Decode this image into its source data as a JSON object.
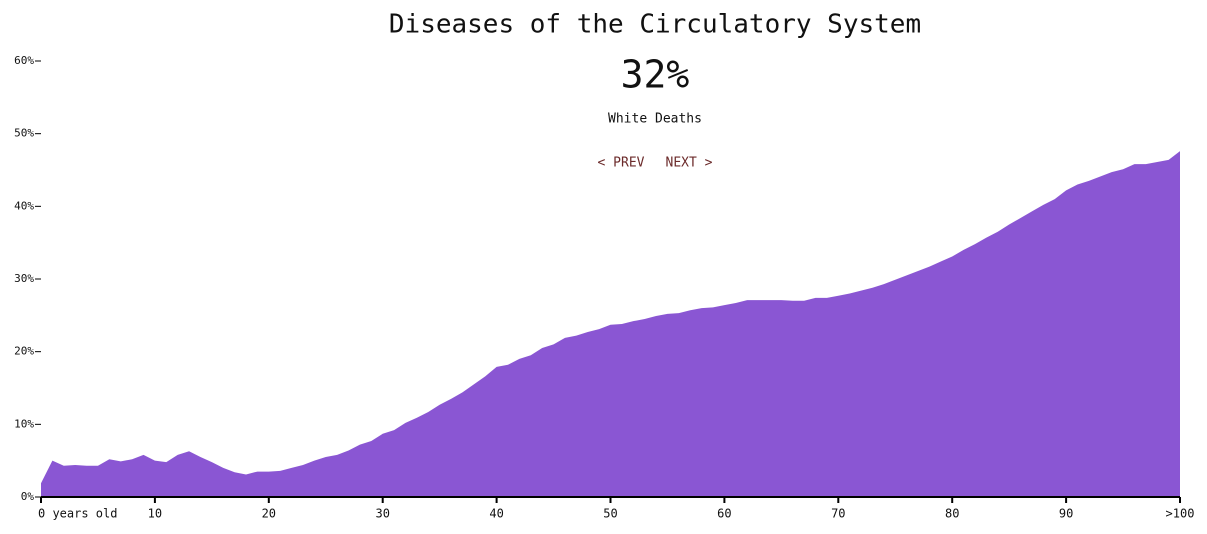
{
  "chart_data": {
    "type": "area",
    "title": "Diseases of the Circulatory System",
    "headline": "32%",
    "subtitle": "White Deaths",
    "nav": [
      "< PREV",
      "NEXT >"
    ],
    "x": [
      0,
      1,
      2,
      3,
      4,
      5,
      6,
      7,
      8,
      9,
      10,
      11,
      12,
      13,
      14,
      15,
      16,
      17,
      18,
      19,
      20,
      21,
      22,
      23,
      24,
      25,
      26,
      27,
      28,
      29,
      30,
      31,
      32,
      33,
      34,
      35,
      36,
      37,
      38,
      39,
      40,
      41,
      42,
      43,
      44,
      45,
      46,
      47,
      48,
      49,
      50,
      51,
      52,
      53,
      54,
      55,
      56,
      57,
      58,
      59,
      60,
      61,
      62,
      63,
      64,
      65,
      66,
      67,
      68,
      69,
      70,
      71,
      72,
      73,
      74,
      75,
      76,
      77,
      78,
      79,
      80,
      81,
      82,
      83,
      84,
      85,
      86,
      87,
      88,
      89,
      90,
      91,
      92,
      93,
      94,
      95,
      96,
      97,
      98,
      99,
      100
    ],
    "values": [
      1.9,
      5.0,
      4.3,
      4.4,
      4.3,
      4.3,
      5.2,
      4.9,
      5.2,
      5.8,
      5.0,
      4.8,
      5.8,
      6.3,
      5.5,
      4.8,
      4.0,
      3.4,
      3.1,
      3.5,
      3.5,
      3.6,
      4.0,
      4.4,
      5.0,
      5.5,
      5.8,
      6.4,
      7.2,
      7.7,
      8.7,
      9.2,
      10.2,
      10.9,
      11.7,
      12.7,
      13.5,
      14.4,
      15.5,
      16.6,
      17.9,
      18.2,
      19.0,
      19.5,
      20.5,
      21.0,
      21.9,
      22.2,
      22.7,
      23.1,
      23.7,
      23.8,
      24.2,
      24.5,
      24.9,
      25.2,
      25.3,
      25.7,
      26.0,
      26.1,
      26.4,
      26.7,
      27.1,
      27.1,
      27.1,
      27.1,
      27.0,
      27.0,
      27.4,
      27.4,
      27.7,
      28.0,
      28.4,
      28.8,
      29.3,
      29.9,
      30.5,
      31.1,
      31.7,
      32.4,
      33.1,
      34.0,
      34.8,
      35.7,
      36.5,
      37.5,
      38.4,
      39.3,
      40.2,
      41.0,
      42.2,
      43.0,
      43.5,
      44.1,
      44.7,
      45.1,
      45.8,
      45.8,
      46.1,
      46.4,
      47.6
    ],
    "color": "#8a56d3",
    "xlim": [
      0,
      100
    ],
    "ylim": [
      0,
      60
    ],
    "xticks": [
      {
        "value": 0,
        "label": "0 years old"
      },
      10,
      20,
      30,
      40,
      50,
      60,
      70,
      80,
      90,
      {
        "value": 100,
        "label": ">100"
      }
    ],
    "yticks": [
      {
        "value": 0,
        "label": "0%"
      },
      {
        "value": 10,
        "label": "10%"
      },
      {
        "value": 20,
        "label": "20%"
      },
      {
        "value": 30,
        "label": "30%"
      },
      {
        "value": 40,
        "label": "40%"
      },
      {
        "value": 50,
        "label": "50%"
      },
      {
        "value": 60,
        "label": "60%"
      }
    ]
  }
}
